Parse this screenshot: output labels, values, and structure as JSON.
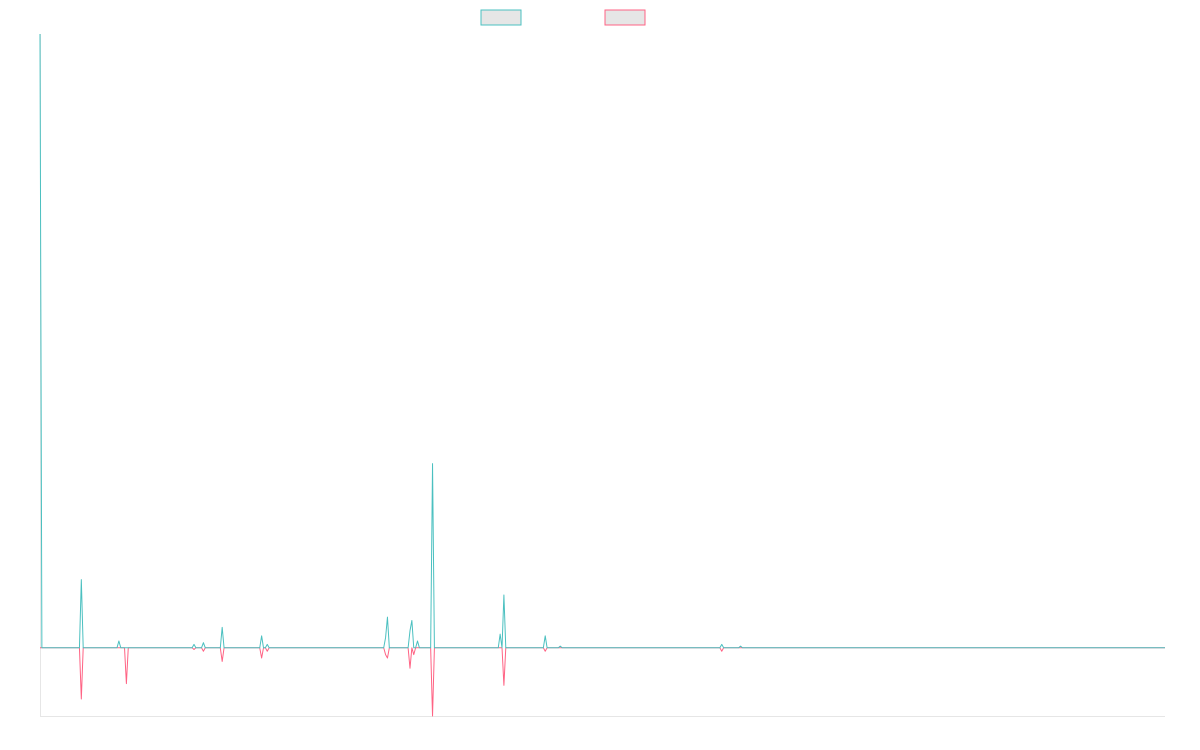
{
  "chart_data": {
    "type": "line",
    "title": "",
    "xlabel": "",
    "ylabel": "",
    "legend": {
      "position": "top-center"
    },
    "grid": false,
    "ylim": [
      -20,
      180
    ],
    "x": [
      0,
      1,
      2,
      3,
      4,
      5,
      6,
      7,
      8,
      9,
      10,
      11,
      12,
      13,
      14,
      15,
      16,
      17,
      18,
      19,
      20,
      21,
      22,
      23,
      24,
      25,
      26,
      27,
      28,
      29,
      30,
      31,
      32,
      33,
      34,
      35,
      36,
      37,
      38,
      39,
      40,
      41,
      42,
      43,
      44,
      45,
      46,
      47,
      48,
      49,
      50,
      51,
      52,
      53,
      54,
      55,
      56,
      57,
      58,
      59,
      60,
      61,
      62,
      63,
      64,
      65,
      66,
      67,
      68,
      69,
      70,
      71,
      72,
      73,
      74,
      75,
      76,
      77,
      78,
      79,
      80,
      81,
      82,
      83,
      84,
      85,
      86,
      87,
      88,
      89,
      90,
      91,
      92,
      93,
      94,
      95,
      96,
      97,
      98,
      99,
      100,
      101,
      102,
      103,
      104,
      105,
      106,
      107,
      108,
      109,
      110,
      111,
      112,
      113,
      114,
      115,
      116,
      117,
      118,
      119,
      120,
      121,
      122,
      123,
      124,
      125,
      126,
      127,
      128,
      129,
      130,
      131,
      132,
      133,
      134,
      135,
      136,
      137,
      138,
      139,
      140,
      141,
      142,
      143,
      144,
      145,
      146,
      147,
      148,
      149,
      150,
      151,
      152,
      153,
      154,
      155,
      156,
      157,
      158,
      159,
      160,
      161,
      162,
      163,
      164,
      165,
      166,
      167,
      168,
      169,
      170,
      171,
      172,
      173,
      174,
      175,
      176,
      177,
      178,
      179,
      180,
      181,
      182,
      183,
      184,
      185,
      186,
      187,
      188,
      189,
      190,
      191,
      192,
      193,
      194,
      195,
      196,
      197,
      198,
      199,
      200,
      201,
      202,
      203,
      204,
      205,
      206,
      207,
      208,
      209,
      210,
      211,
      212,
      213,
      214,
      215,
      216,
      217,
      218,
      219,
      220,
      221,
      222,
      223,
      224,
      225,
      226,
      227,
      228,
      229,
      230,
      231,
      232,
      233,
      234,
      235,
      236,
      237,
      238,
      239,
      240,
      241,
      242,
      243,
      244,
      245,
      246,
      247,
      248,
      249,
      250,
      251,
      252,
      253,
      254,
      255,
      256,
      257,
      258,
      259,
      260,
      261,
      262,
      263,
      264,
      265,
      266,
      267,
      268,
      269,
      270,
      271,
      272,
      273,
      274,
      275,
      276,
      277,
      278,
      279,
      280,
      281,
      282,
      283,
      284,
      285,
      286,
      287,
      288,
      289,
      290,
      291,
      292,
      293,
      294,
      295,
      296,
      297,
      298,
      299,
      300,
      301,
      302,
      303,
      304,
      305,
      306,
      307,
      308,
      309,
      310,
      311,
      312,
      313,
      314,
      315,
      316,
      317,
      318,
      319,
      320,
      321,
      322,
      323,
      324,
      325,
      326,
      327,
      328,
      329,
      330,
      331,
      332,
      333,
      334,
      335,
      336,
      337,
      338,
      339,
      340,
      341,
      342,
      343,
      344,
      345,
      346,
      347,
      348,
      349,
      350,
      351,
      352,
      353,
      354,
      355,
      356,
      357,
      358,
      359,
      360,
      361,
      362,
      363,
      364,
      365,
      366,
      367,
      368,
      369,
      370,
      371,
      372,
      373,
      374,
      375,
      376,
      377,
      378,
      379,
      380,
      381,
      382,
      383,
      384,
      385,
      386,
      387,
      388,
      389,
      390,
      391,
      392,
      393,
      394,
      395,
      396,
      397,
      398,
      399,
      400,
      401,
      402,
      403,
      404,
      405,
      406,
      407,
      408,
      409,
      410,
      411,
      412,
      413,
      414,
      415,
      416,
      417,
      418,
      419,
      420,
      421,
      422,
      423,
      424,
      425,
      426,
      427,
      428,
      429,
      430,
      431,
      432,
      433,
      434,
      435,
      436,
      437,
      438,
      439,
      440,
      441,
      442,
      443,
      444,
      445,
      446,
      447,
      448,
      449,
      450,
      451,
      452,
      453,
      454,
      455,
      456,
      457,
      458,
      459,
      460,
      461,
      462,
      463,
      464,
      465,
      466,
      467,
      468,
      469,
      470,
      471,
      472,
      473,
      474,
      475,
      476,
      477,
      478,
      479,
      480,
      481,
      482,
      483,
      484,
      485,
      486,
      487,
      488,
      489,
      490,
      491,
      492,
      493,
      494,
      495,
      496,
      497,
      498,
      499,
      500,
      501,
      502,
      503,
      504,
      505,
      506,
      507,
      508,
      509,
      510,
      511,
      512,
      513,
      514,
      515,
      516,
      517,
      518,
      519,
      520,
      521,
      522,
      523,
      524,
      525,
      526,
      527,
      528,
      529,
      530,
      531,
      532,
      533,
      534,
      535,
      536,
      537,
      538,
      539,
      540,
      541,
      542,
      543,
      544,
      545,
      546,
      547,
      548,
      549,
      550,
      551,
      552,
      553,
      554,
      555,
      556,
      557,
      558,
      559,
      560,
      561,
      562,
      563,
      564,
      565,
      566,
      567,
      568,
      569,
      570,
      571,
      572,
      573,
      574,
      575,
      576,
      577,
      578,
      579,
      580,
      581,
      582,
      583,
      584,
      585,
      586,
      587,
      588,
      589,
      590,
      591,
      592,
      593,
      594,
      595,
      596,
      597,
      598,
      599
    ],
    "series": [
      {
        "name": "",
        "color": "#4bc0c0",
        "points": [
          [
            0,
            180
          ],
          [
            1,
            0
          ],
          [
            21,
            0
          ],
          [
            22,
            20
          ],
          [
            23,
            0
          ],
          [
            41,
            0
          ],
          [
            42,
            2
          ],
          [
            43,
            0
          ],
          [
            81,
            0
          ],
          [
            82,
            1
          ],
          [
            83,
            0
          ],
          [
            86,
            0
          ],
          [
            87,
            1.5
          ],
          [
            88,
            0
          ],
          [
            96,
            0
          ],
          [
            97,
            6
          ],
          [
            98,
            0
          ],
          [
            117,
            0
          ],
          [
            118,
            3.5
          ],
          [
            119,
            0
          ],
          [
            120,
            0
          ],
          [
            121,
            1
          ],
          [
            122,
            0
          ],
          [
            183,
            0
          ],
          [
            184,
            3
          ],
          [
            185,
            9
          ],
          [
            186,
            0
          ],
          [
            196,
            0
          ],
          [
            197,
            5
          ],
          [
            198,
            8
          ],
          [
            199,
            0
          ],
          [
            200,
            0
          ],
          [
            201,
            2
          ],
          [
            202,
            0
          ],
          [
            208,
            0
          ],
          [
            209,
            54
          ],
          [
            210,
            0
          ],
          [
            244,
            0
          ],
          [
            245,
            4
          ],
          [
            246,
            0
          ],
          [
            247,
            15.5
          ],
          [
            248,
            0
          ],
          [
            268,
            0
          ],
          [
            269,
            3.5
          ],
          [
            270,
            0
          ],
          [
            276,
            0
          ],
          [
            277,
            0.5
          ],
          [
            278,
            0
          ],
          [
            362,
            0
          ],
          [
            363,
            1
          ],
          [
            364,
            0
          ],
          [
            372,
            0
          ],
          [
            373,
            0.5
          ],
          [
            374,
            0
          ],
          [
            599,
            0
          ]
        ]
      },
      {
        "name": "",
        "color": "#ff6384",
        "points": [
          [
            0,
            0
          ],
          [
            21,
            0
          ],
          [
            22,
            -15
          ],
          [
            23,
            0
          ],
          [
            45,
            0
          ],
          [
            46,
            -10.5
          ],
          [
            47,
            0
          ],
          [
            81,
            0
          ],
          [
            82,
            -0.5
          ],
          [
            83,
            0
          ],
          [
            86,
            0
          ],
          [
            87,
            -1
          ],
          [
            88,
            0
          ],
          [
            96,
            0
          ],
          [
            97,
            -4
          ],
          [
            98,
            0
          ],
          [
            117,
            0
          ],
          [
            118,
            -3
          ],
          [
            119,
            0
          ],
          [
            120,
            0
          ],
          [
            121,
            -1
          ],
          [
            122,
            0
          ],
          [
            183,
            0
          ],
          [
            184,
            -2
          ],
          [
            185,
            -3
          ],
          [
            186,
            0
          ],
          [
            196,
            0
          ],
          [
            197,
            -6
          ],
          [
            198,
            0
          ],
          [
            199,
            -2
          ],
          [
            200,
            0
          ],
          [
            208,
            0
          ],
          [
            209,
            -20
          ],
          [
            210,
            0
          ],
          [
            246,
            0
          ],
          [
            247,
            -11
          ],
          [
            248,
            0
          ],
          [
            268,
            0
          ],
          [
            269,
            -1
          ],
          [
            270,
            0
          ],
          [
            362,
            0
          ],
          [
            363,
            -1
          ],
          [
            364,
            0
          ],
          [
            599,
            0
          ]
        ]
      }
    ]
  }
}
